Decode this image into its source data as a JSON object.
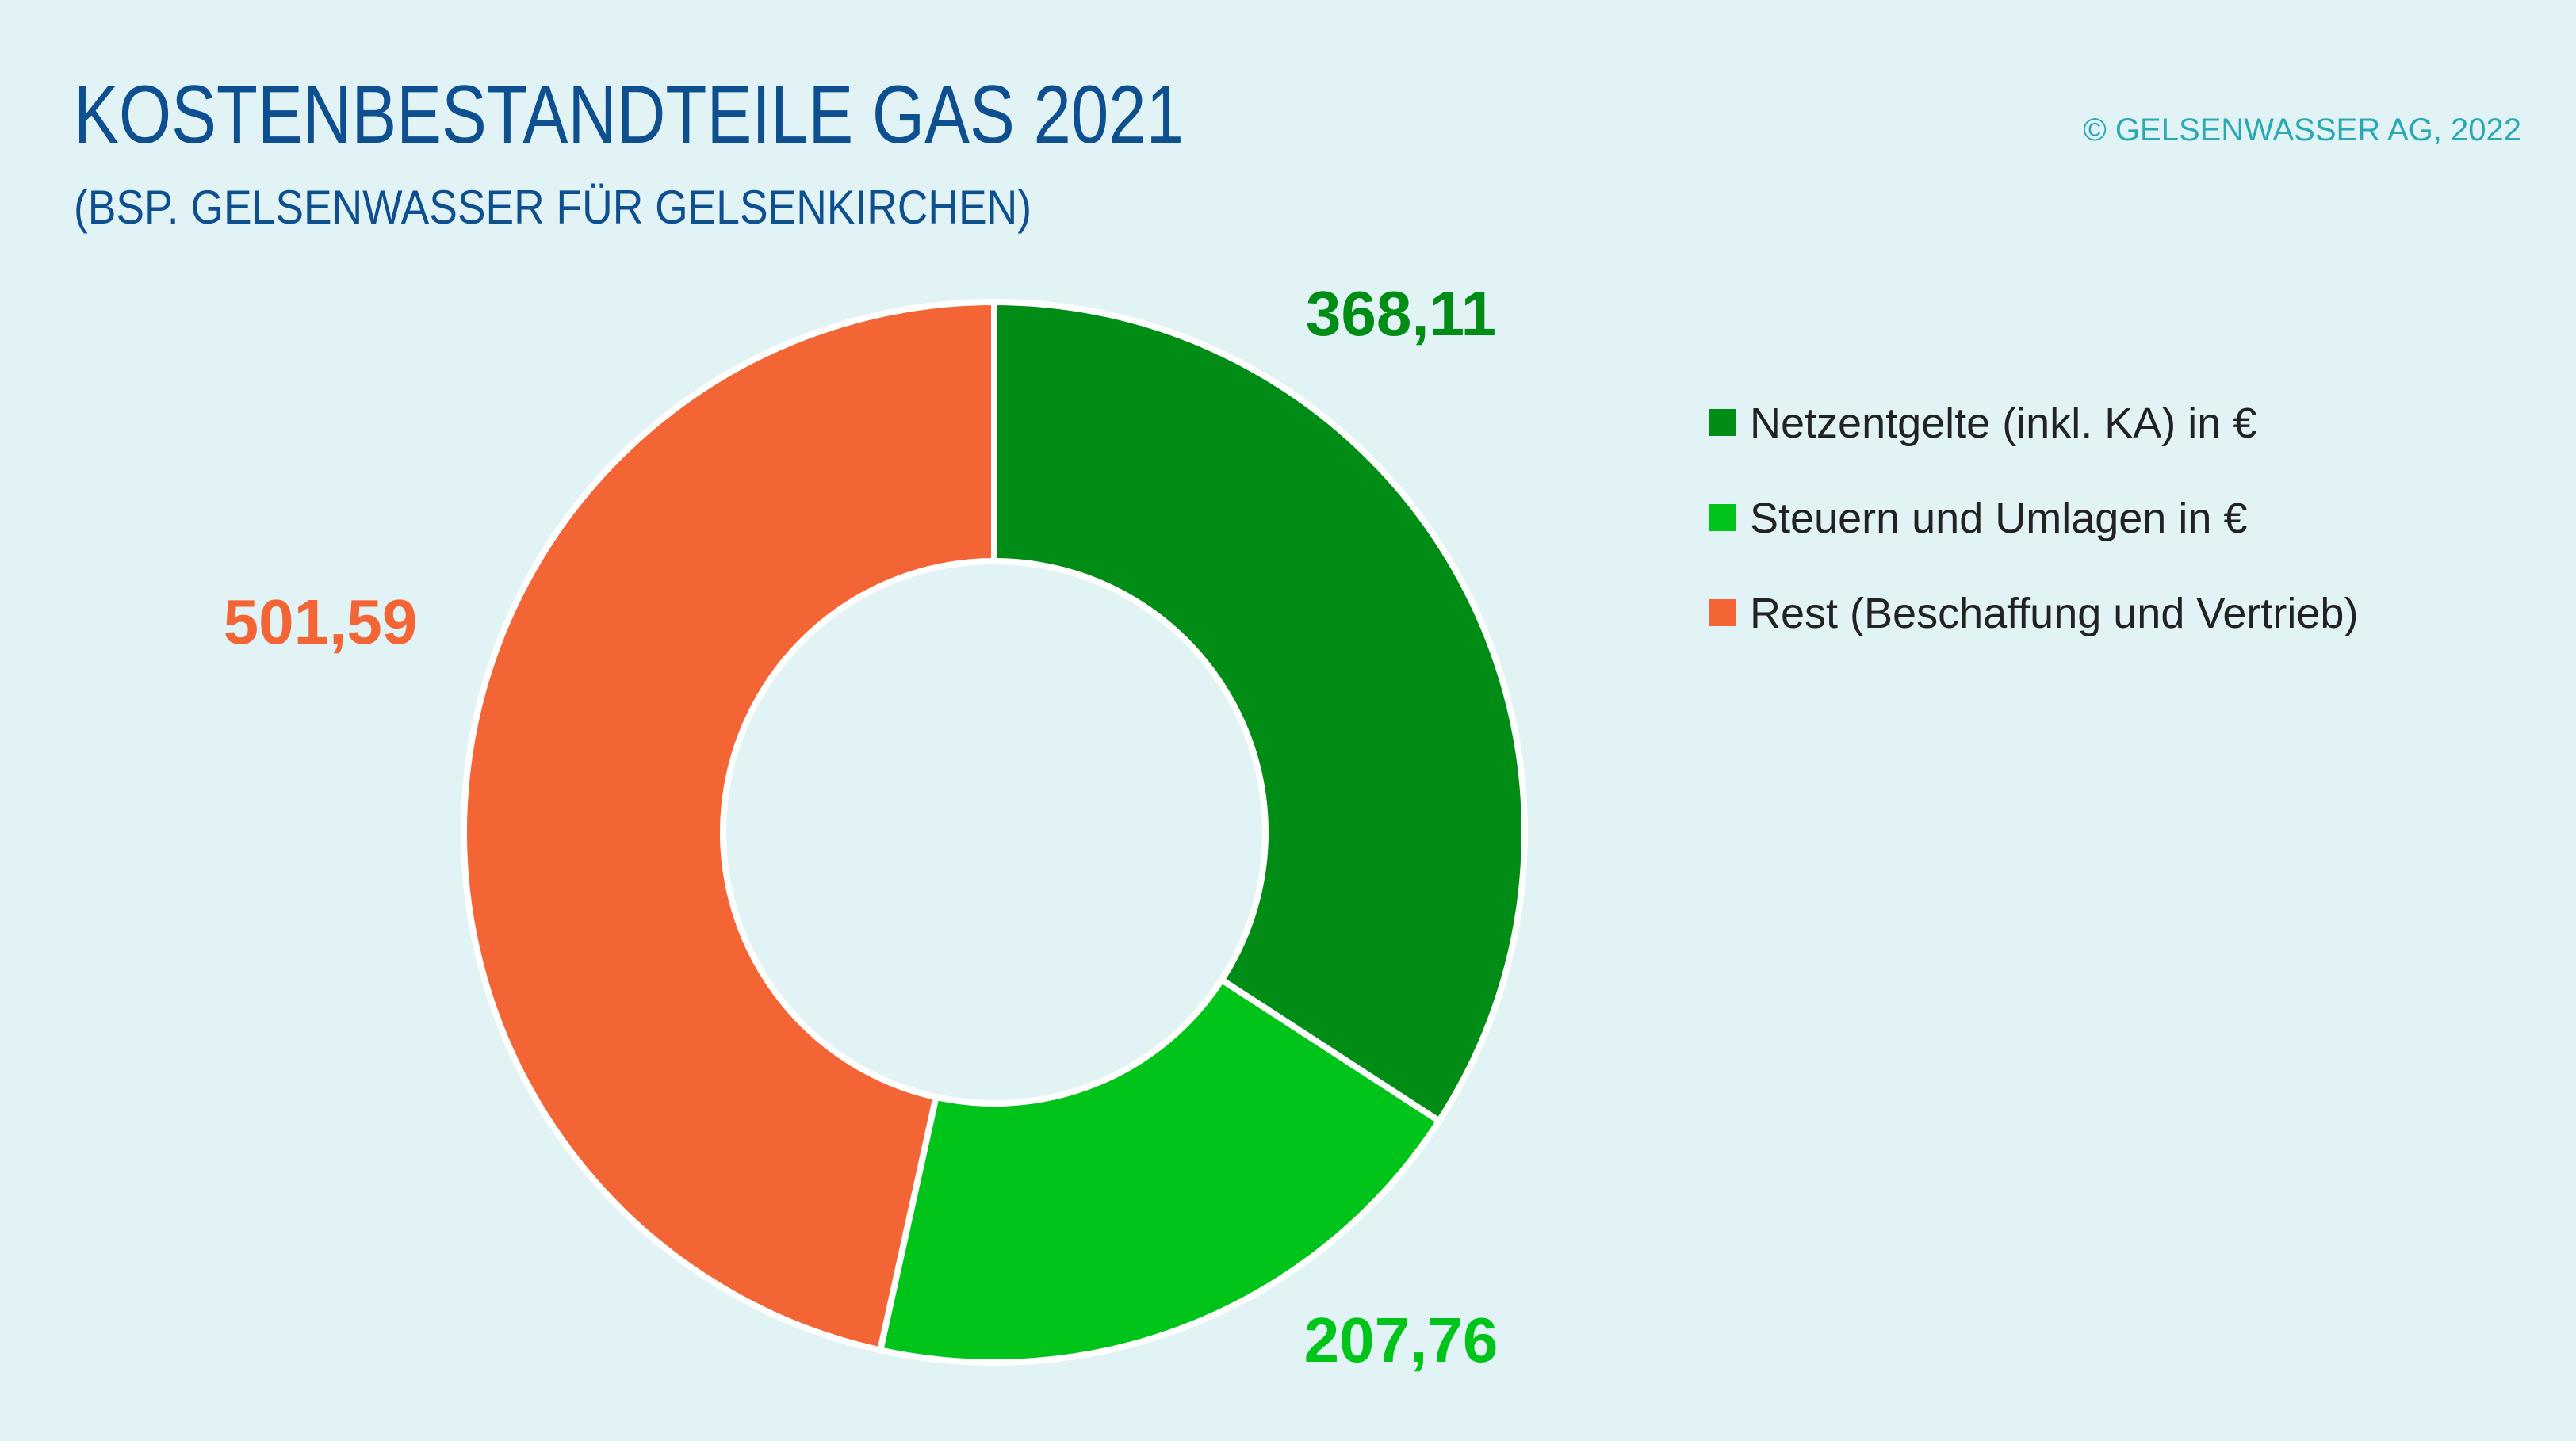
{
  "chart_data": {
    "type": "donut",
    "title": "KOSTENBESTANDTEILE GAS 2021",
    "subtitle": "(BSP. GELSENWASSER FÜR GELSENKIRCHEN)",
    "source": "© GELSENWASSER AG, 2022",
    "categories": [
      "Netzentgelte (inkl. KA) in €",
      "Steuern und Umlagen in €",
      "Rest (Beschaffung und Vertrieb)"
    ],
    "values": [
      368.11,
      207.76,
      501.59
    ],
    "value_labels": [
      "368,11",
      "207,76",
      "501,59"
    ],
    "colors": [
      "#008c15",
      "#00c41a",
      "#f46535"
    ],
    "legend": "right"
  }
}
